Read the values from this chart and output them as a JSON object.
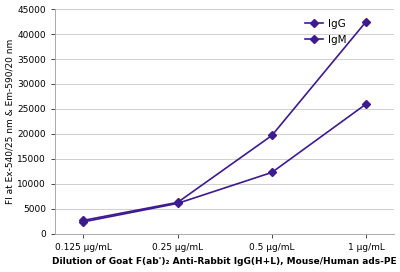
{
  "x_labels": [
    "0.125 μg/mL",
    "0.25 μg/mL",
    "0.5 μg/mL",
    "1 μg/mL"
  ],
  "x_positions": [
    0,
    1,
    2,
    3
  ],
  "IgG_values": [
    2700,
    6300,
    19700,
    42500
  ],
  "IgM_values": [
    2400,
    6100,
    12300,
    26000
  ],
  "line_color": "#3d1a8e",
  "marker_style": "D",
  "marker_size": 4,
  "ylim": [
    0,
    45000
  ],
  "yticks": [
    0,
    5000,
    10000,
    15000,
    20000,
    25000,
    30000,
    35000,
    40000,
    45000
  ],
  "ylabel": "FI at Ex-540/25 nm & Em-590/20 nm",
  "xlabel": "Dilution of Goat F(ab')₂ Anti-Rabbit IgG(H+L), Mouse/Human ads-PE",
  "legend_labels": [
    "IgG",
    "IgM"
  ],
  "axis_fontsize": 6.5,
  "tick_fontsize": 6.5,
  "legend_fontsize": 7.5,
  "background_color": "#ffffff",
  "grid_color": "#d0d0d0"
}
